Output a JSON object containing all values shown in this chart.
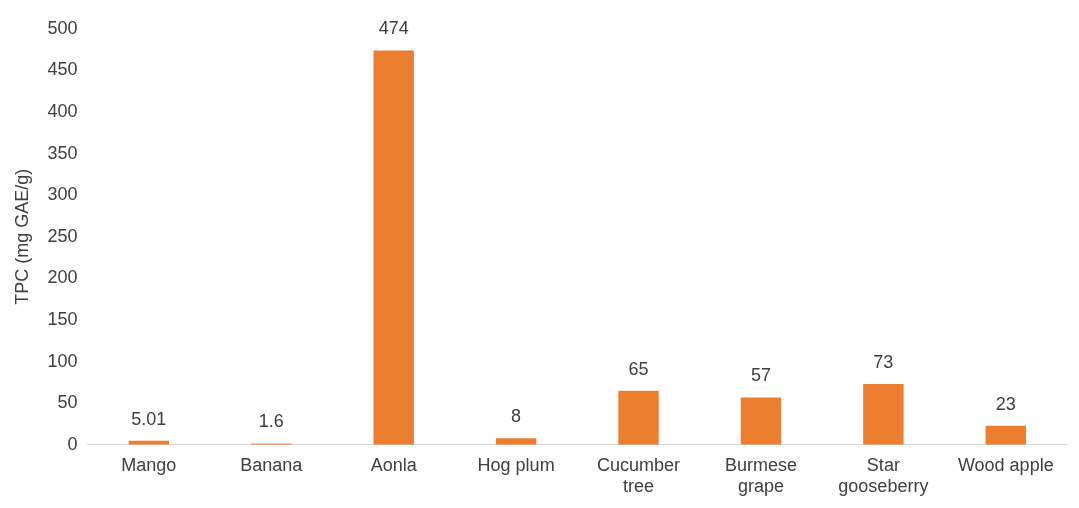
{
  "chart_data": {
    "type": "bar",
    "ylabel": "TPC (mg GAE/g)",
    "categories": [
      "Mango",
      "Banana",
      "Aonla",
      "Hog plum",
      "Cucumber tree",
      "Burmese grape",
      "Star gooseberry",
      "Wood apple"
    ],
    "values": [
      5.01,
      1.6,
      474,
      8,
      65,
      57,
      73,
      23
    ],
    "color": "#ed7d31",
    "ylim": [
      0,
      500
    ],
    "yticks": [
      0,
      50,
      100,
      150,
      200,
      250,
      300,
      350,
      400,
      450,
      500
    ],
    "data_labels": true,
    "grid": false,
    "legend": false
  }
}
